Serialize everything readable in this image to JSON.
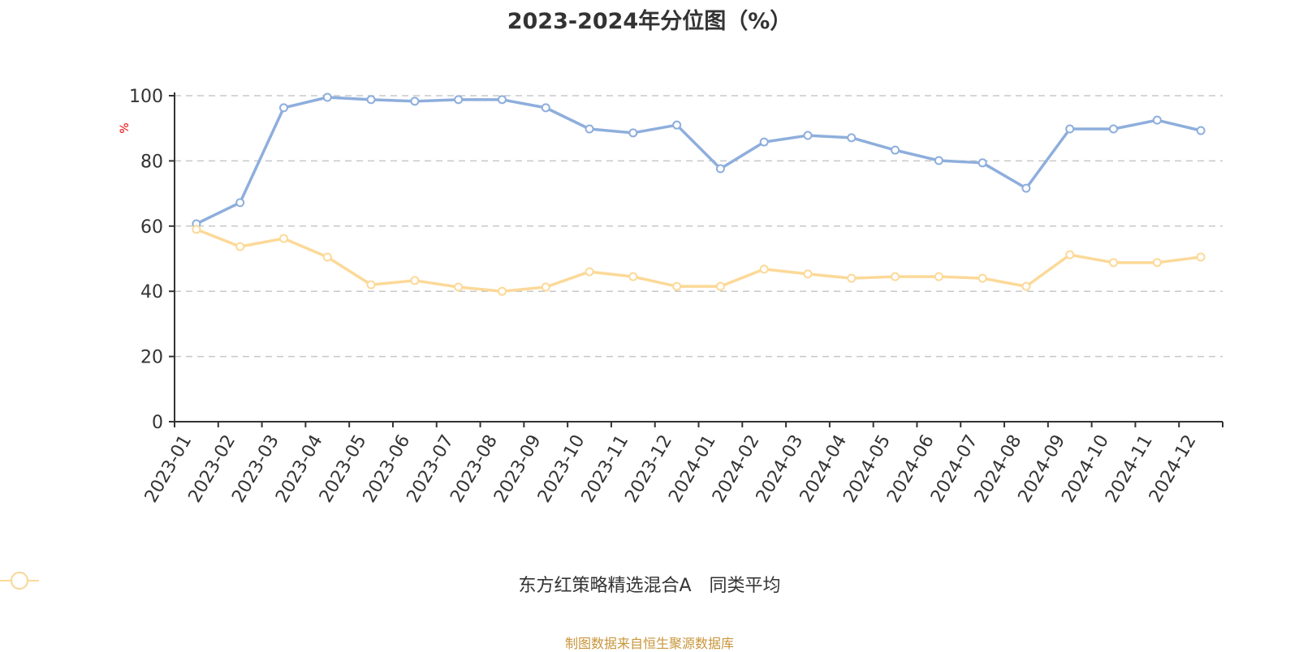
{
  "title": "2023-2024年分位图（%）",
  "source": "制图数据来自恒生聚源数据库",
  "y_axis_unit": "%",
  "legend": [
    {
      "label": "东方红策略精选混合A",
      "color": "#8eaedc"
    },
    {
      "label": "同类平均",
      "color": "#fcd998"
    }
  ],
  "chart_data": {
    "type": "line",
    "title": "2023-2024年分位图（%）",
    "xlabel": "",
    "ylabel": "%",
    "ylim": [
      0,
      100
    ],
    "yticks": [
      0,
      20,
      40,
      60,
      80,
      100
    ],
    "grid": true,
    "legend_position": "bottom",
    "categories": [
      "2023-01",
      "2023-02",
      "2023-03",
      "2023-04",
      "2023-05",
      "2023-06",
      "2023-07",
      "2023-08",
      "2023-09",
      "2023-10",
      "2023-11",
      "2023-12",
      "2024-01",
      "2024-02",
      "2024-03",
      "2024-04",
      "2024-05",
      "2024-06",
      "2024-07",
      "2024-08",
      "2024-09",
      "2024-10",
      "2024-11",
      "2024-12"
    ],
    "series": [
      {
        "name": "东方红策略精选混合A",
        "color": "#8eaedc",
        "values": [
          60.7,
          67.2,
          96.3,
          99.5,
          98.8,
          98.3,
          98.8,
          98.8,
          96.3,
          89.8,
          88.6,
          91.0,
          77.6,
          85.8,
          87.8,
          87.1,
          83.3,
          80.1,
          79.4,
          71.6,
          89.8,
          89.8,
          92.5,
          89.3
        ]
      },
      {
        "name": "同类平均",
        "color": "#fcd998",
        "values": [
          59.0,
          53.7,
          56.2,
          50.5,
          42.0,
          43.3,
          41.3,
          40.0,
          41.3,
          46.0,
          44.5,
          41.5,
          41.5,
          46.8,
          45.3,
          44.0,
          44.5,
          44.5,
          44.0,
          41.5,
          51.2,
          48.8,
          48.8,
          50.5
        ]
      }
    ]
  }
}
